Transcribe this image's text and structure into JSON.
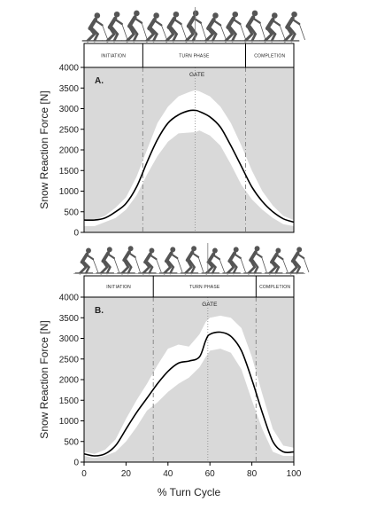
{
  "chart_data": [
    {
      "type": "line",
      "panel_label": "A.",
      "ylabel": "Snow Reaction Force [N]",
      "xlabel": "",
      "xlim": [
        0,
        100
      ],
      "ylim": [
        0,
        4000
      ],
      "x_ticks": [],
      "y_ticks": [
        0,
        500,
        1000,
        1500,
        2000,
        2500,
        3000,
        3500,
        4000
      ],
      "phases": [
        {
          "label": "INITIATION",
          "start": 0,
          "end": 28
        },
        {
          "label": "TURN PHASE",
          "start": 28,
          "end": 77
        },
        {
          "label": "COMPLETION",
          "start": 77,
          "end": 100
        }
      ],
      "gate": {
        "label": "GATE",
        "x": 53
      },
      "x": [
        0,
        5,
        10,
        15,
        20,
        25,
        30,
        35,
        40,
        45,
        50,
        53,
        55,
        60,
        65,
        70,
        75,
        80,
        85,
        90,
        95,
        100
      ],
      "series": [
        {
          "values": [
            300,
            300,
            350,
            500,
            700,
            1100,
            1700,
            2250,
            2650,
            2850,
            2950,
            2960,
            2930,
            2800,
            2550,
            2100,
            1600,
            1100,
            750,
            500,
            330,
            250
          ]
        }
      ],
      "band_upper": [
        300,
        300,
        400,
        600,
        850,
        1350,
        2000,
        2650,
        3050,
        3300,
        3400,
        3450,
        3420,
        3300,
        3050,
        2650,
        2100,
        1500,
        1000,
        650,
        400,
        300
      ],
      "band_lower": [
        150,
        150,
        250,
        350,
        550,
        900,
        1400,
        1850,
        2200,
        2400,
        2420,
        2430,
        2470,
        2350,
        2100,
        1650,
        1150,
        800,
        550,
        350,
        200,
        150
      ]
    },
    {
      "type": "line",
      "panel_label": "B.",
      "ylabel": "Snow Reaction Force [N]",
      "xlabel": "% Turn Cycle",
      "xlim": [
        0,
        100
      ],
      "ylim": [
        0,
        4000
      ],
      "x_ticks": [
        0,
        20,
        40,
        60,
        80,
        100
      ],
      "y_ticks": [
        0,
        500,
        1000,
        1500,
        2000,
        2500,
        3000,
        3500,
        4000
      ],
      "phases": [
        {
          "label": "INITIATION",
          "start": 0,
          "end": 33
        },
        {
          "label": "TURN PHASE",
          "start": 33,
          "end": 82
        },
        {
          "label": "COMPLETION",
          "start": 82,
          "end": 100
        }
      ],
      "gate": {
        "label": "GATE",
        "x": 59
      },
      "x": [
        0,
        5,
        10,
        15,
        20,
        25,
        30,
        35,
        40,
        45,
        50,
        55,
        58,
        60,
        65,
        70,
        75,
        80,
        85,
        90,
        95,
        100
      ],
      "series": [
        {
          "values": [
            200,
            150,
            200,
            400,
            800,
            1200,
            1550,
            1900,
            2200,
            2400,
            2450,
            2550,
            2950,
            3100,
            3150,
            3050,
            2700,
            2000,
            1200,
            500,
            250,
            250
          ]
        }
      ],
      "band_upper": [
        250,
        200,
        300,
        550,
        1050,
        1500,
        1900,
        2350,
        2750,
        2850,
        2800,
        3100,
        3400,
        3500,
        3550,
        3500,
        3250,
        2550,
        1650,
        800,
        400,
        350
      ],
      "band_lower": [
        150,
        100,
        150,
        250,
        500,
        850,
        1250,
        1450,
        1700,
        1900,
        2050,
        2300,
        2550,
        2700,
        2750,
        2650,
        2250,
        1500,
        800,
        250,
        150,
        150
      ]
    }
  ],
  "colors": {
    "plot_background": "#d9d9d9",
    "variation_band": "#ffffff",
    "mean_line": "#000000",
    "phase_divider": "#8a8a8a",
    "skier_icon": "#555555"
  },
  "icons": [
    "skier-sequence-icon"
  ]
}
